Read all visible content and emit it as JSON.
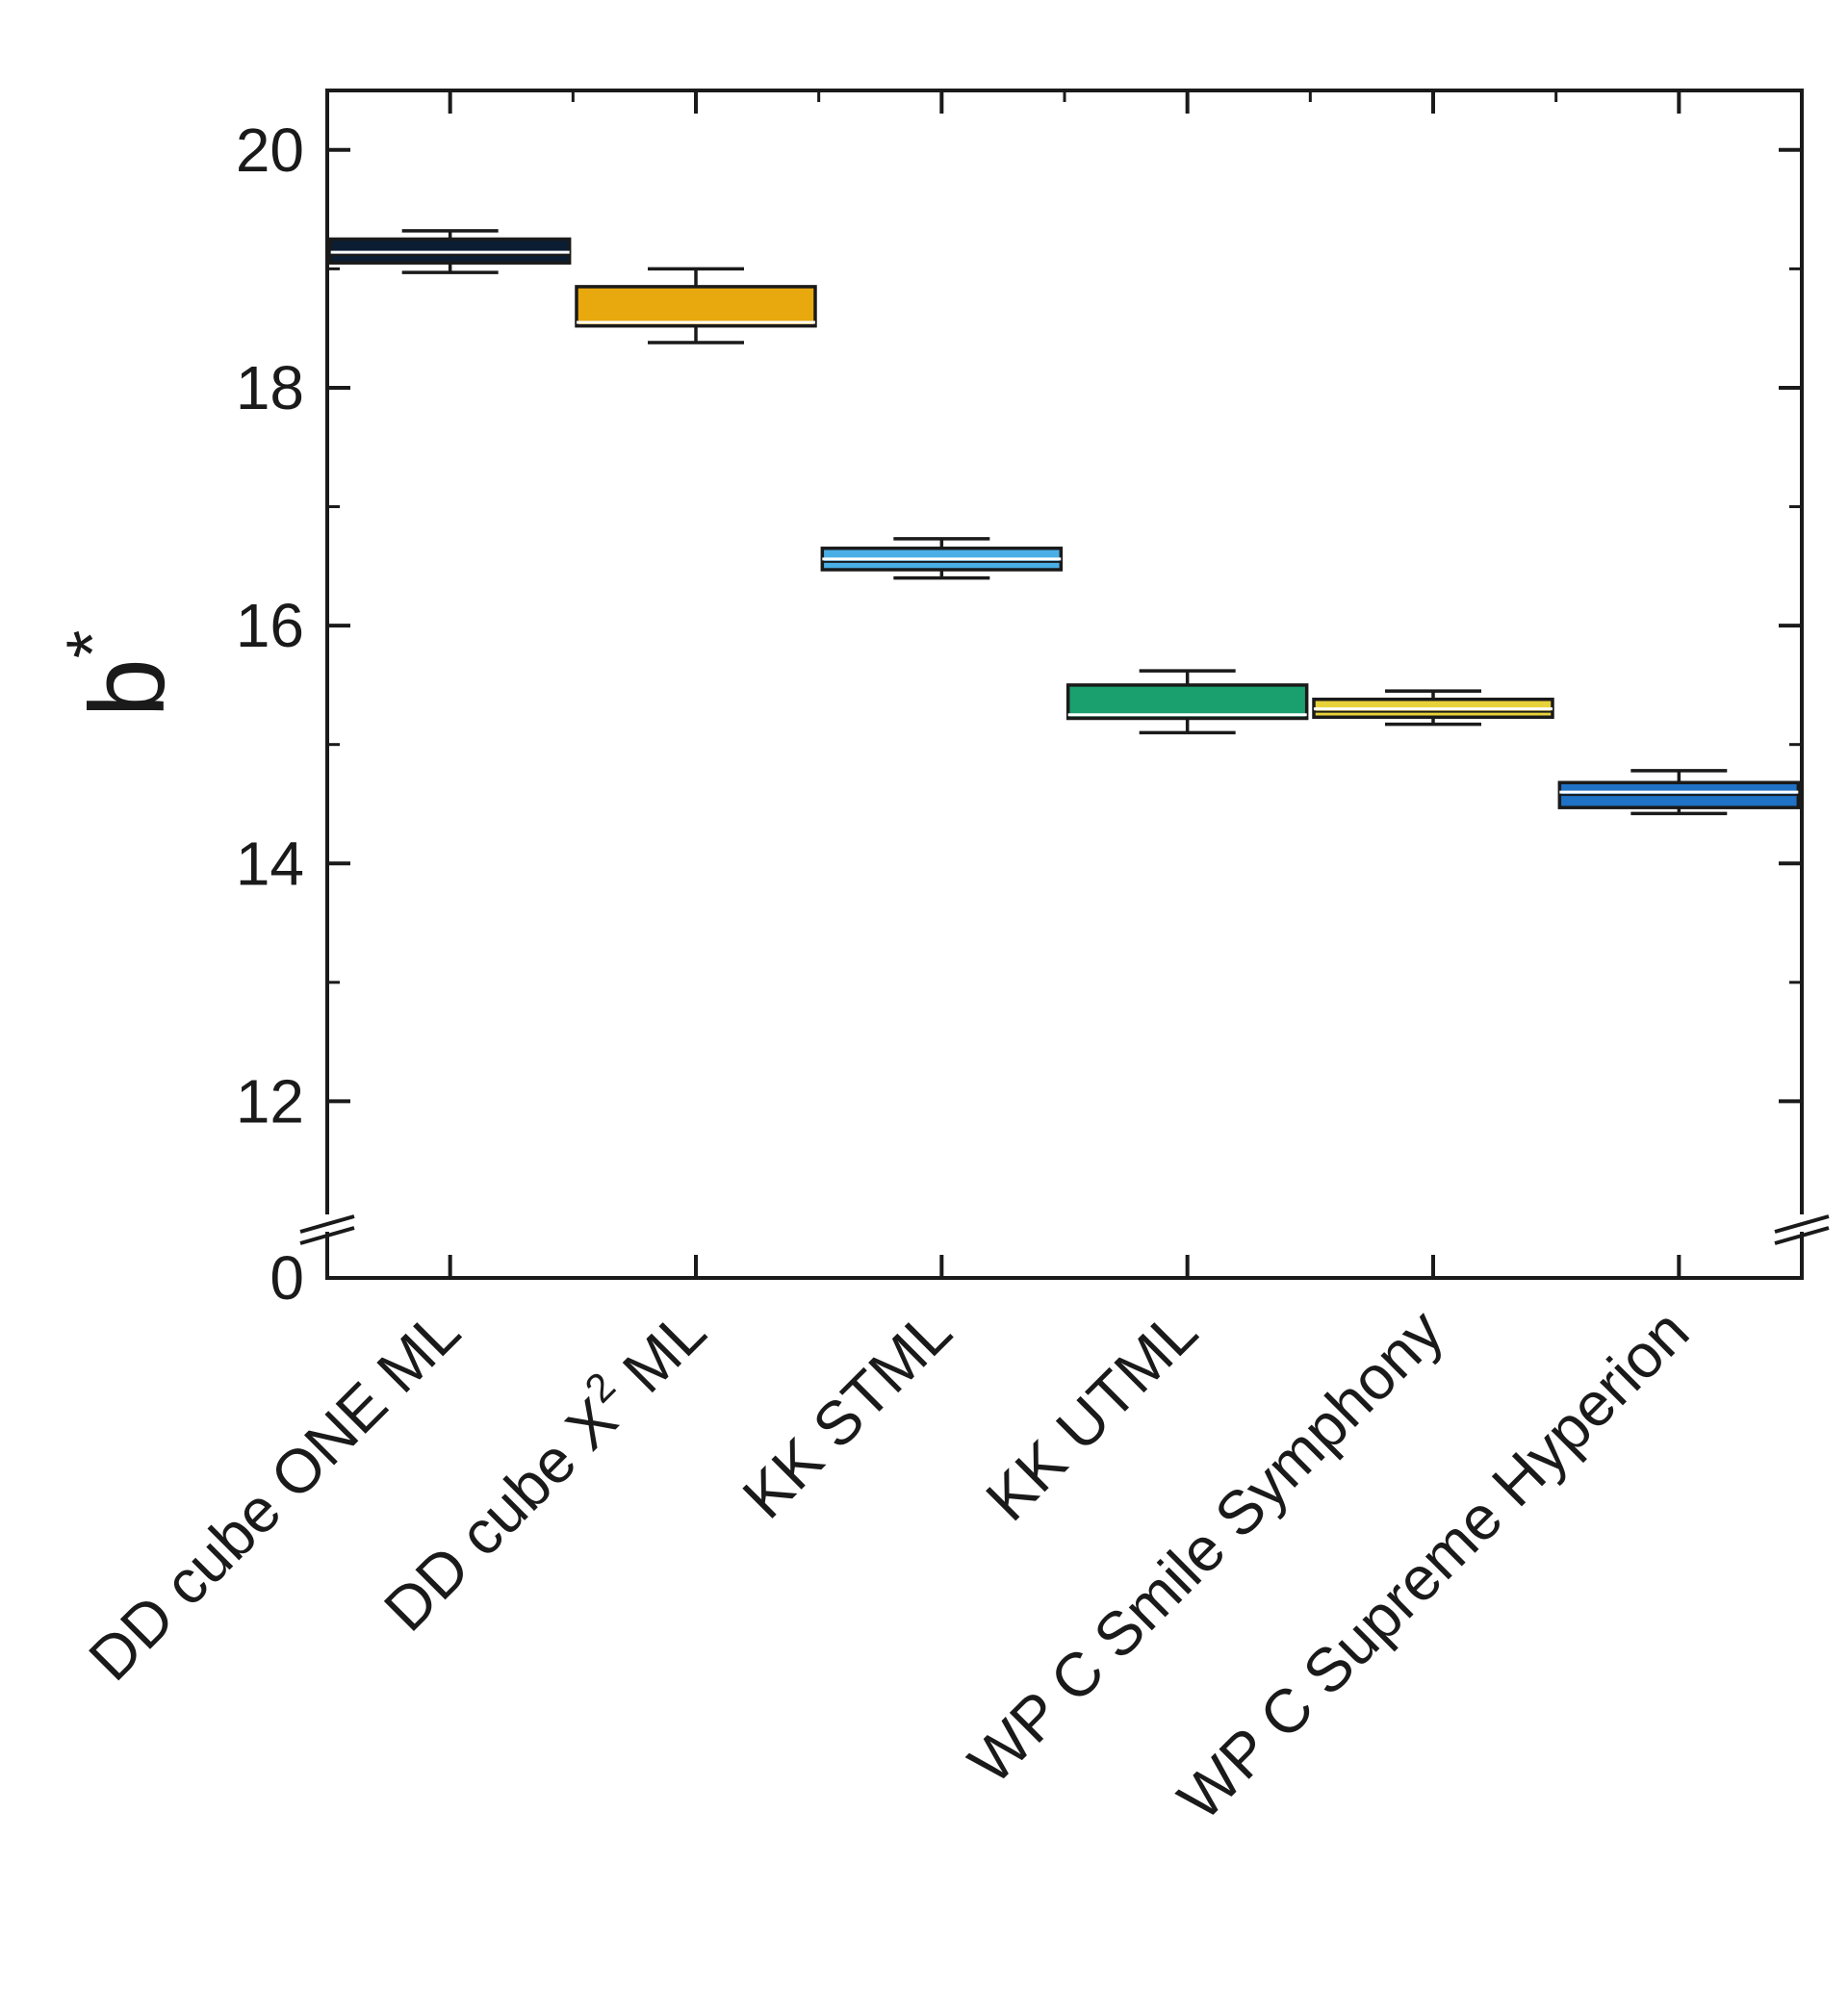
{
  "chart_data": {
    "type": "box",
    "ylabel": "b",
    "ylabel_superscript": "*",
    "ylim": [
      11,
      20.5
    ],
    "axis_break": {
      "lower_value": 0,
      "lower_label": "0"
    },
    "yticks_major": [
      12,
      14,
      16,
      18,
      20
    ],
    "yticks_labels": [
      "12",
      "14",
      "16",
      "18",
      "20"
    ],
    "yticks_minor": [
      11,
      13,
      15,
      17,
      19
    ],
    "categories": [
      {
        "label": "DD cube ONE ML"
      },
      {
        "label_prefix": "DD cube X",
        "label_sup": "2",
        "label_suffix": " ML"
      },
      {
        "label": "KK STML"
      },
      {
        "label": "KK UTML"
      },
      {
        "label": "WP C Smile Symphony"
      },
      {
        "label": "WP C Supreme Hyperion"
      }
    ],
    "boxes": [
      {
        "whisker_low": 18.97,
        "q1": 19.05,
        "median": 19.14,
        "q3": 19.25,
        "whisker_high": 19.32,
        "color": "#0b1d33"
      },
      {
        "whisker_low": 18.38,
        "q1": 18.52,
        "median": 18.55,
        "q3": 18.85,
        "whisker_high": 19.0,
        "color": "#e8a90f"
      },
      {
        "whisker_low": 16.4,
        "q1": 16.47,
        "median": 16.56,
        "q3": 16.65,
        "whisker_high": 16.73,
        "color": "#4aaee6"
      },
      {
        "whisker_low": 15.1,
        "q1": 15.22,
        "median": 15.25,
        "q3": 15.5,
        "whisker_high": 15.62,
        "color": "#1aa06e"
      },
      {
        "whisker_low": 15.17,
        "q1": 15.23,
        "median": 15.3,
        "q3": 15.38,
        "whisker_high": 15.45,
        "color": "#e8d23a"
      },
      {
        "whisker_low": 14.42,
        "q1": 14.47,
        "median": 14.6,
        "q3": 14.68,
        "whisker_high": 14.78,
        "color": "#1f72c6"
      }
    ],
    "grid": false,
    "legend": "none"
  }
}
